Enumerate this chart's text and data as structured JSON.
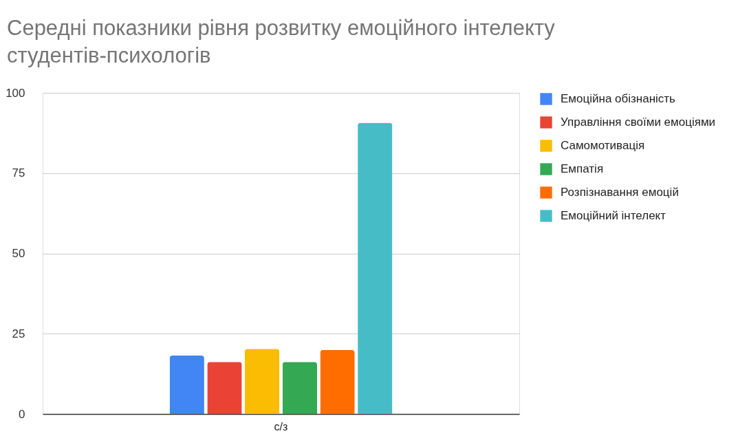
{
  "chart_data": {
    "type": "bar",
    "title": "Середні показники рівня розвитку емоційного інтелекту студентів-психологів",
    "categories": [
      "с/з"
    ],
    "series": [
      {
        "name": "Емоційна обізнаність",
        "color": "#4285f4",
        "values": [
          18.2
        ]
      },
      {
        "name": "Управління своїми емоціями",
        "color": "#ea4335",
        "values": [
          16.2
        ]
      },
      {
        "name": "Самомотивація",
        "color": "#fbbc04",
        "values": [
          20.3
        ]
      },
      {
        "name": "Емпатія",
        "color": "#34a853",
        "values": [
          16.2
        ]
      },
      {
        "name": "Розпізнавання емоцій",
        "color": "#ff6d01",
        "values": [
          19.9
        ]
      },
      {
        "name": "Емоційний інтелект",
        "color": "#46bdc6",
        "values": [
          90.7
        ]
      }
    ],
    "ylim": [
      0,
      100
    ],
    "yticks": [
      0,
      25,
      50,
      75,
      100
    ],
    "grid": true,
    "legend": "right"
  }
}
